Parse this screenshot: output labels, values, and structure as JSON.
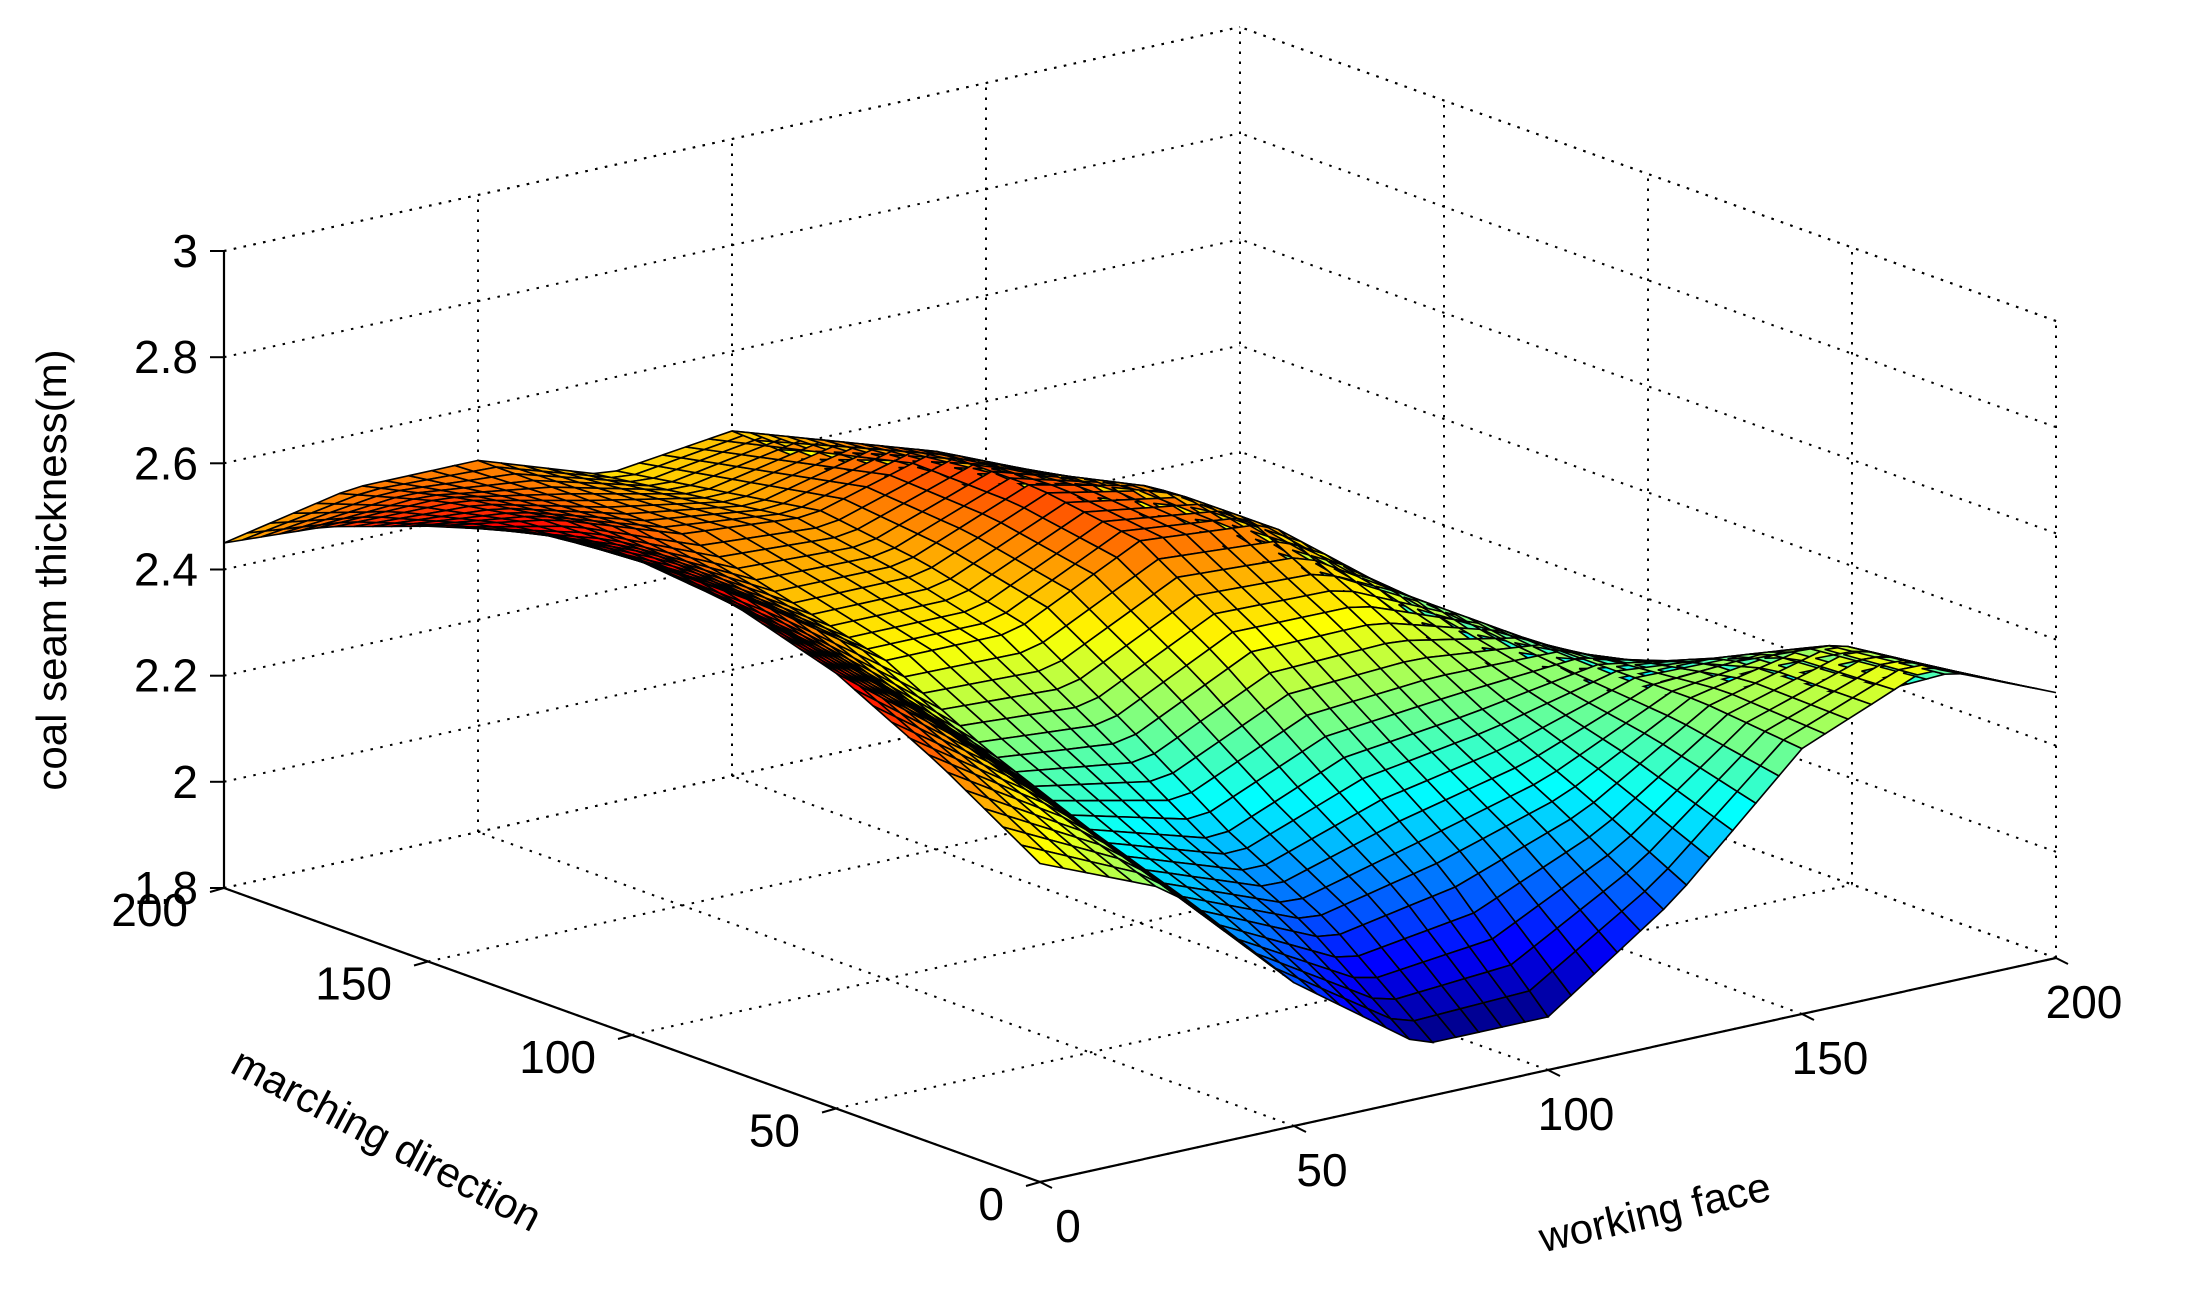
{
  "chart_data": {
    "type": "surface",
    "xlabel": "working face",
    "ylabel": "marching direction",
    "zlabel": "coal seam thickness(m)",
    "xlim": [
      0,
      200
    ],
    "ylim": [
      0,
      200
    ],
    "zlim": [
      1.8,
      3
    ],
    "x_ticks": [
      0,
      50,
      100,
      150,
      200
    ],
    "y_ticks": [
      0,
      50,
      100,
      150,
      200
    ],
    "z_ticks": [
      1.8,
      2,
      2.2,
      2.4,
      2.6,
      2.8,
      3
    ],
    "x_tick_labels": [
      "0",
      "50",
      "100",
      "150",
      "200"
    ],
    "y_tick_labels": [
      "0",
      "50",
      "100",
      "150",
      "200"
    ],
    "z_tick_labels": [
      "1.8",
      "2",
      "2.2",
      "2.4",
      "2.6",
      "2.8",
      "3"
    ],
    "grid": true,
    "colormap": "jet",
    "edge_color": "#000000",
    "surface_samples": {
      "x": [
        0,
        25,
        50,
        75,
        100,
        125,
        150,
        175,
        200
      ],
      "y": [
        0,
        25,
        50,
        75,
        100,
        125,
        150,
        175,
        200
      ],
      "z": [
        [
          2.4,
          2.3,
          2.07,
          1.9,
          1.9,
          2.07,
          2.3,
          2.4,
          2.3
        ],
        [
          2.52,
          2.37,
          2.15,
          2.05,
          2.1,
          2.18,
          2.32,
          2.38,
          2.27
        ],
        [
          2.62,
          2.44,
          2.22,
          2.15,
          2.25,
          2.28,
          2.32,
          2.28,
          2.15
        ],
        [
          2.68,
          2.5,
          2.3,
          2.28,
          2.4,
          2.4,
          2.32,
          2.16,
          2.02
        ],
        [
          2.7,
          2.56,
          2.4,
          2.4,
          2.52,
          2.5,
          2.32,
          2.08,
          1.95
        ],
        [
          2.68,
          2.58,
          2.45,
          2.45,
          2.55,
          2.5,
          2.3,
          2.05,
          1.95
        ],
        [
          2.62,
          2.58,
          2.5,
          2.48,
          2.55,
          2.45,
          2.25,
          2.0,
          1.95
        ],
        [
          2.55,
          2.55,
          2.5,
          2.45,
          2.5,
          2.38,
          2.18,
          1.98,
          2.0
        ],
        [
          2.45,
          2.5,
          2.5,
          2.42,
          2.45,
          2.3,
          2.1,
          1.95,
          2.05
        ]
      ]
    }
  }
}
